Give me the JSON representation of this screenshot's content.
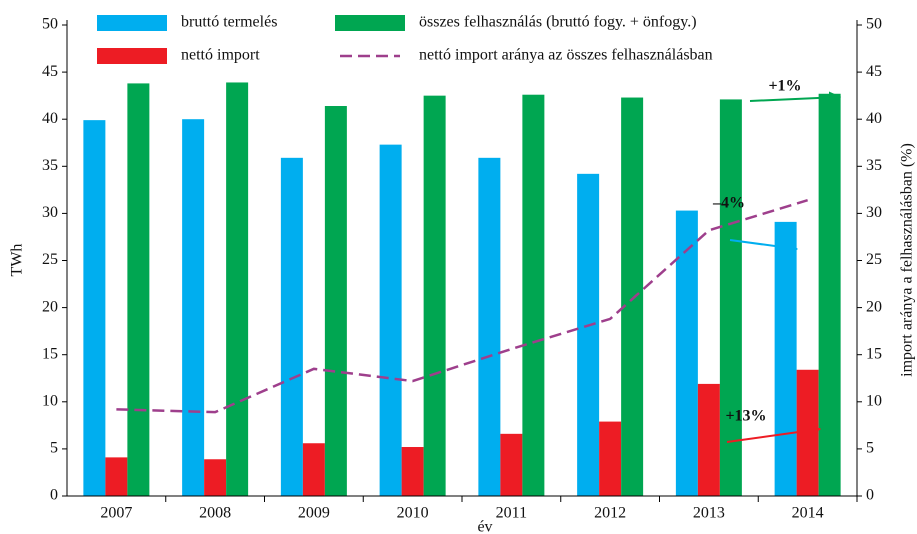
{
  "chart_data": {
    "type": "bar",
    "categories": [
      "2007",
      "2008",
      "2009",
      "2010",
      "2011",
      "2012",
      "2013",
      "2014"
    ],
    "series": [
      {
        "name": "bruttó termelés",
        "color": "#00aeef",
        "values": [
          39.9,
          40.0,
          35.9,
          37.3,
          35.9,
          34.2,
          30.3,
          29.1
        ]
      },
      {
        "name": "nettó import",
        "color": "#ed1c24",
        "values": [
          4.1,
          3.9,
          5.6,
          5.2,
          6.6,
          7.9,
          11.9,
          13.4
        ]
      },
      {
        "name": "összes felhasználás (bruttó fogy. + önfogy.)",
        "color": "#00a651",
        "values": [
          43.8,
          43.9,
          41.4,
          42.5,
          42.6,
          42.3,
          42.1,
          42.7
        ]
      },
      {
        "name": "nettó import aránya az összes felhasználásban",
        "color": "#9e3f8c",
        "axis": "y2",
        "type": "line",
        "dashed": true,
        "values": [
          9.2,
          8.9,
          13.5,
          12.2,
          15.6,
          18.8,
          28.2,
          31.4
        ]
      }
    ],
    "xlabel": "év",
    "ylabel": "TWh",
    "y2label": "import aránya a felhasználásban (%)",
    "ylim": [
      0,
      50
    ],
    "yticks": [
      0,
      5,
      10,
      15,
      20,
      25,
      30,
      35,
      40,
      45,
      50
    ],
    "y2lim": [
      0,
      50
    ],
    "y2ticks": [
      0,
      5,
      10,
      15,
      20,
      25,
      30,
      35,
      40,
      45,
      50
    ],
    "annotations": [
      {
        "text": "+1%",
        "color": "#00a651"
      },
      {
        "text": "–4%",
        "color": "#00aeef"
      },
      {
        "text": "+13%",
        "color": "#ed1c24"
      }
    ]
  }
}
